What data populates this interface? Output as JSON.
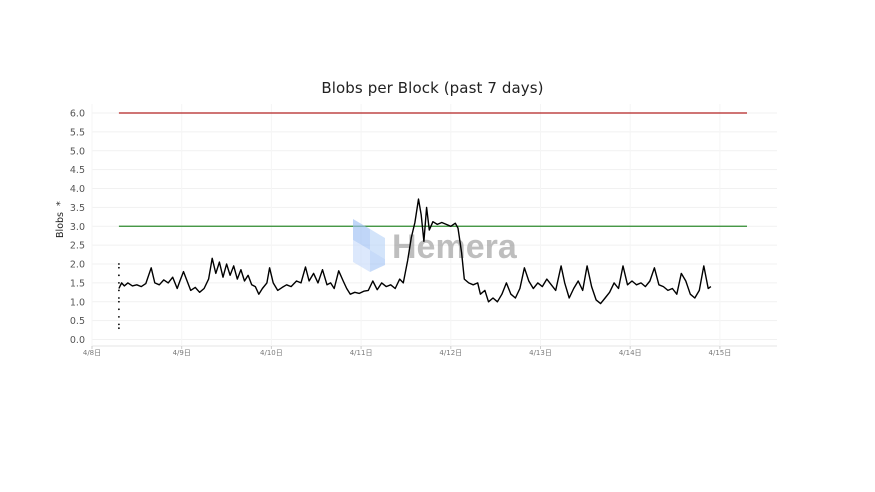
{
  "chart_data": {
    "type": "line",
    "title": "Blobs per Block (past 7 days)",
    "ylabel": "Blobs",
    "ylabel_marker": "*",
    "xlabel": "",
    "ylim": [
      0,
      6.2
    ],
    "yticks": [
      "0.0",
      "0.5",
      "1.0",
      "1.5",
      "2.0",
      "2.5",
      "3.0",
      "3.5",
      "4.0",
      "4.5",
      "5.0",
      "5.5",
      "6.0"
    ],
    "x_ticks": [
      "4/8日",
      "4/9日",
      "4/10日",
      "4/11日",
      "4/12日",
      "4/13日",
      "4/14日",
      "4/15日"
    ],
    "xlim_days": [
      0,
      7.1
    ],
    "grid": true,
    "legend": "none",
    "reference_lines": [
      {
        "value": 6.0,
        "color": "#b22222"
      },
      {
        "value": 3.0,
        "color": "#2e8b2e"
      }
    ],
    "series": [
      {
        "color": "#000000",
        "points": [
          [
            0.3,
            1.35
          ],
          [
            0.33,
            1.5
          ],
          [
            0.36,
            1.42
          ],
          [
            0.4,
            1.5
          ],
          [
            0.45,
            1.42
          ],
          [
            0.5,
            1.45
          ],
          [
            0.55,
            1.4
          ],
          [
            0.6,
            1.48
          ],
          [
            0.66,
            1.9
          ],
          [
            0.7,
            1.5
          ],
          [
            0.75,
            1.45
          ],
          [
            0.8,
            1.58
          ],
          [
            0.85,
            1.5
          ],
          [
            0.9,
            1.65
          ],
          [
            0.95,
            1.35
          ],
          [
            0.98,
            1.55
          ],
          [
            1.02,
            1.8
          ],
          [
            1.06,
            1.55
          ],
          [
            1.1,
            1.3
          ],
          [
            1.15,
            1.38
          ],
          [
            1.2,
            1.25
          ],
          [
            1.25,
            1.35
          ],
          [
            1.3,
            1.6
          ],
          [
            1.34,
            2.15
          ],
          [
            1.38,
            1.75
          ],
          [
            1.42,
            2.05
          ],
          [
            1.46,
            1.65
          ],
          [
            1.5,
            2.0
          ],
          [
            1.54,
            1.7
          ],
          [
            1.58,
            1.95
          ],
          [
            1.62,
            1.6
          ],
          [
            1.66,
            1.85
          ],
          [
            1.7,
            1.55
          ],
          [
            1.74,
            1.7
          ],
          [
            1.78,
            1.45
          ],
          [
            1.82,
            1.4
          ],
          [
            1.86,
            1.2
          ],
          [
            1.9,
            1.35
          ],
          [
            1.95,
            1.5
          ],
          [
            1.98,
            1.9
          ],
          [
            2.02,
            1.5
          ],
          [
            2.07,
            1.3
          ],
          [
            2.12,
            1.38
          ],
          [
            2.17,
            1.45
          ],
          [
            2.22,
            1.4
          ],
          [
            2.28,
            1.55
          ],
          [
            2.33,
            1.5
          ],
          [
            2.38,
            1.92
          ],
          [
            2.42,
            1.55
          ],
          [
            2.47,
            1.75
          ],
          [
            2.52,
            1.5
          ],
          [
            2.57,
            1.85
          ],
          [
            2.62,
            1.45
          ],
          [
            2.66,
            1.5
          ],
          [
            2.7,
            1.35
          ],
          [
            2.75,
            1.82
          ],
          [
            2.8,
            1.55
          ],
          [
            2.84,
            1.35
          ],
          [
            2.88,
            1.2
          ],
          [
            2.93,
            1.25
          ],
          [
            2.98,
            1.22
          ],
          [
            3.03,
            1.28
          ],
          [
            3.08,
            1.3
          ],
          [
            3.13,
            1.55
          ],
          [
            3.18,
            1.32
          ],
          [
            3.23,
            1.5
          ],
          [
            3.28,
            1.4
          ],
          [
            3.33,
            1.45
          ],
          [
            3.38,
            1.35
          ],
          [
            3.43,
            1.6
          ],
          [
            3.47,
            1.5
          ],
          [
            3.52,
            2.1
          ],
          [
            3.56,
            2.7
          ],
          [
            3.6,
            3.1
          ],
          [
            3.64,
            3.72
          ],
          [
            3.67,
            3.3
          ],
          [
            3.7,
            2.6
          ],
          [
            3.73,
            3.5
          ],
          [
            3.76,
            2.9
          ],
          [
            3.8,
            3.12
          ],
          [
            3.85,
            3.05
          ],
          [
            3.9,
            3.1
          ],
          [
            3.95,
            3.05
          ],
          [
            4.0,
            3.0
          ],
          [
            4.05,
            3.08
          ],
          [
            4.08,
            2.95
          ],
          [
            4.12,
            2.3
          ],
          [
            4.15,
            1.6
          ],
          [
            4.2,
            1.5
          ],
          [
            4.25,
            1.45
          ],
          [
            4.3,
            1.5
          ],
          [
            4.33,
            1.2
          ],
          [
            4.38,
            1.3
          ],
          [
            4.42,
            1.0
          ],
          [
            4.47,
            1.1
          ],
          [
            4.52,
            1.0
          ],
          [
            4.57,
            1.2
          ],
          [
            4.62,
            1.5
          ],
          [
            4.67,
            1.2
          ],
          [
            4.72,
            1.1
          ],
          [
            4.77,
            1.35
          ],
          [
            4.82,
            1.9
          ],
          [
            4.87,
            1.55
          ],
          [
            4.92,
            1.35
          ],
          [
            4.97,
            1.5
          ],
          [
            5.02,
            1.4
          ],
          [
            5.07,
            1.6
          ],
          [
            5.12,
            1.45
          ],
          [
            5.17,
            1.3
          ],
          [
            5.23,
            1.95
          ],
          [
            5.27,
            1.5
          ],
          [
            5.32,
            1.1
          ],
          [
            5.37,
            1.35
          ],
          [
            5.42,
            1.55
          ],
          [
            5.47,
            1.3
          ],
          [
            5.52,
            1.95
          ],
          [
            5.57,
            1.4
          ],
          [
            5.62,
            1.05
          ],
          [
            5.67,
            0.95
          ],
          [
            5.72,
            1.1
          ],
          [
            5.77,
            1.25
          ],
          [
            5.82,
            1.5
          ],
          [
            5.87,
            1.35
          ],
          [
            5.92,
            1.95
          ],
          [
            5.97,
            1.45
          ],
          [
            6.02,
            1.55
          ],
          [
            6.07,
            1.45
          ],
          [
            6.12,
            1.5
          ],
          [
            6.17,
            1.4
          ],
          [
            6.22,
            1.55
          ],
          [
            6.27,
            1.9
          ],
          [
            6.32,
            1.45
          ],
          [
            6.37,
            1.4
          ],
          [
            6.42,
            1.3
          ],
          [
            6.47,
            1.35
          ],
          [
            6.52,
            1.2
          ],
          [
            6.57,
            1.75
          ],
          [
            6.62,
            1.55
          ],
          [
            6.67,
            1.2
          ],
          [
            6.72,
            1.1
          ],
          [
            6.77,
            1.3
          ],
          [
            6.82,
            1.95
          ],
          [
            6.87,
            1.35
          ],
          [
            6.9,
            1.4
          ]
        ]
      }
    ],
    "initial_spread": {
      "x": 0.3,
      "y_values": [
        0.3,
        0.4,
        0.6,
        0.8,
        1.0,
        1.1,
        1.3,
        1.5,
        1.7,
        1.9,
        2.0
      ]
    }
  },
  "watermark": {
    "text": "Hemera",
    "icon": "hemera-logo-icon"
  }
}
